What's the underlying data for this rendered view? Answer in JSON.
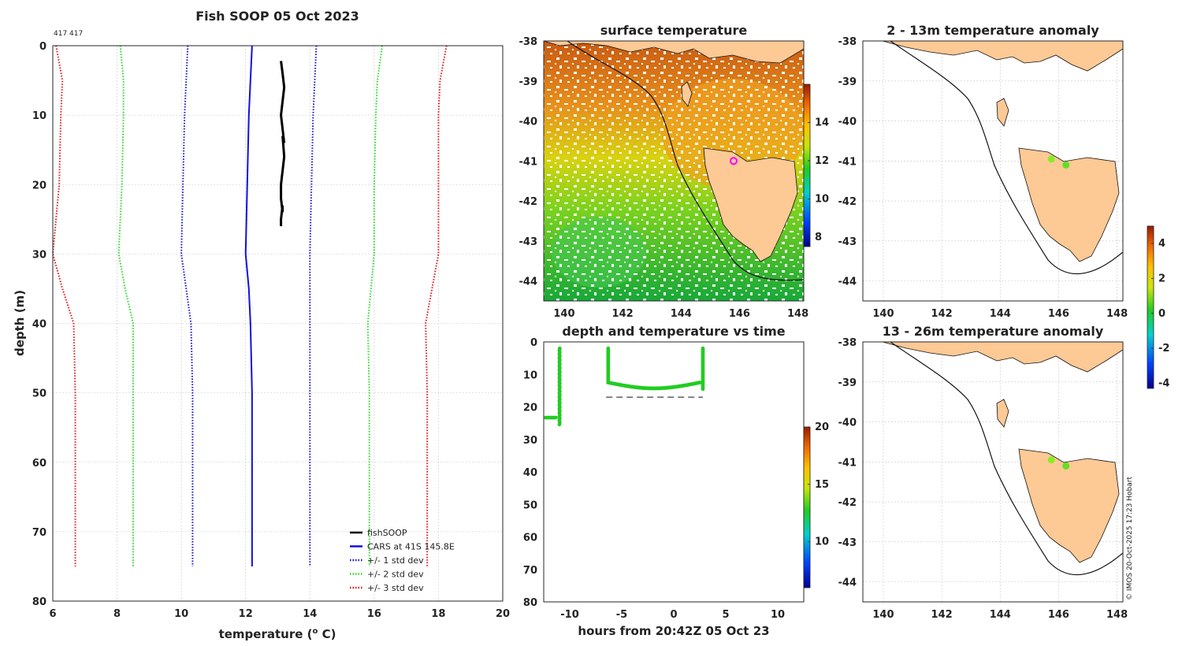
{
  "chart_data": [
    {
      "id": "profile",
      "type": "line",
      "title": "Fish SOOP 05 Oct 2023",
      "corner_label": "417 417",
      "xlabel": "temperature (",
      "xlabel_sup": "o",
      "xlabel_tail": " C)",
      "ylabel": "depth (m)",
      "xlim": [
        6,
        20
      ],
      "ylim": [
        80,
        0
      ],
      "xticks": [
        6,
        8,
        10,
        12,
        14,
        16,
        18,
        20
      ],
      "yticks": [
        0,
        10,
        20,
        30,
        40,
        50,
        60,
        70,
        80
      ],
      "grid": true,
      "legend_position": "bottom-right",
      "series": [
        {
          "name": "fishSOOP",
          "color": "#000000",
          "style": "solid",
          "width": 3,
          "x": [
            13.1,
            13.15,
            13.2,
            13.15,
            13.1,
            13.15,
            13.2,
            13.15,
            13.2,
            13.15,
            13.1,
            13.1,
            13.15,
            13.15,
            13.1,
            13.1
          ],
          "y": [
            2.2,
            4,
            6,
            8,
            10,
            12,
            14,
            13,
            16,
            18,
            20,
            22,
            24,
            23,
            25,
            26
          ]
        },
        {
          "name": "CARS at 41S 145.8E",
          "color": "#1010e0",
          "style": "solid",
          "width": 2,
          "x": [
            12.2,
            12.15,
            12.1,
            12.05,
            12.0,
            12.1,
            12.15,
            12.2,
            12.2,
            12.2
          ],
          "y": [
            0,
            5,
            10,
            20,
            30,
            35,
            40,
            50,
            60,
            75
          ]
        },
        {
          "name": "+/- 1 std dev",
          "color": "#1010e0",
          "style": "dotted",
          "width": 2,
          "x": [
            10.2,
            10.15,
            10.1,
            10.05,
            10.0,
            10.15,
            10.3,
            10.35,
            10.35,
            10.35
          ],
          "y": [
            0,
            5,
            10,
            20,
            30,
            35,
            40,
            50,
            60,
            75
          ]
        },
        {
          "name": "",
          "color": "#1010e0",
          "style": "dotted",
          "width": 2,
          "x": [
            14.2,
            14.15,
            14.1,
            14.05,
            14.0,
            14.0,
            14.0,
            14.0,
            14.0,
            14.0
          ],
          "y": [
            0,
            5,
            10,
            20,
            30,
            35,
            40,
            50,
            60,
            75
          ]
        },
        {
          "name": "+/- 2 std dev",
          "color": "#22dd22",
          "style": "dotted",
          "width": 2,
          "x": [
            8.1,
            8.2,
            8.2,
            8.15,
            8.05,
            8.25,
            8.5,
            8.5,
            8.5,
            8.5
          ],
          "y": [
            0,
            5,
            10,
            20,
            30,
            35,
            40,
            50,
            60,
            75
          ]
        },
        {
          "name": "",
          "color": "#22dd22",
          "style": "dotted",
          "width": 2,
          "x": [
            16.25,
            16.1,
            16.05,
            16.0,
            16.0,
            15.9,
            15.8,
            15.85,
            15.85,
            15.85
          ],
          "y": [
            0,
            5,
            10,
            20,
            30,
            35,
            40,
            50,
            60,
            75
          ]
        },
        {
          "name": "+/- 3 std dev",
          "color": "#ee1111",
          "style": "dotted",
          "width": 2,
          "x": [
            6.1,
            6.3,
            6.25,
            6.2,
            6.0,
            6.3,
            6.65,
            6.7,
            6.7,
            6.7
          ],
          "y": [
            0,
            5,
            10,
            20,
            30,
            35,
            40,
            50,
            60,
            75
          ]
        },
        {
          "name": "",
          "color": "#ee1111",
          "style": "dotted",
          "width": 2,
          "x": [
            18.25,
            18.05,
            18.0,
            18.0,
            18.0,
            17.8,
            17.6,
            17.65,
            17.65,
            17.65
          ],
          "y": [
            0,
            5,
            10,
            20,
            30,
            35,
            40,
            50,
            60,
            75
          ]
        }
      ]
    },
    {
      "id": "surface",
      "type": "heatmap",
      "title": "surface temperature",
      "xlim": [
        139.3,
        148.2
      ],
      "ylim": [
        -44.5,
        -38
      ],
      "xticks": [
        140,
        142,
        144,
        146,
        148
      ],
      "yticks": [
        -38,
        -39,
        -40,
        -41,
        -42,
        -43,
        -44
      ],
      "colorbar": {
        "min": 7.5,
        "max": 16,
        "ticks": [
          8,
          10,
          12,
          14
        ]
      },
      "marker": {
        "lon": 145.8,
        "lat": -41.0,
        "color": "#ff00ff"
      }
    },
    {
      "id": "timeseries",
      "type": "scatter",
      "title": "depth and temperature vs time",
      "xlabel": "hours from 20:42Z 05 Oct 23",
      "xlim": [
        -12.5,
        12.5
      ],
      "ylim": [
        80,
        0
      ],
      "xticks": [
        -10,
        -5,
        0,
        5,
        10
      ],
      "yticks": [
        0,
        10,
        20,
        30,
        40,
        50,
        60,
        70,
        80
      ],
      "colorbar": {
        "min": 6,
        "max": 20,
        "ticks": [
          10,
          15,
          20
        ]
      },
      "reference_line": {
        "y": 17,
        "x": [
          -6.5,
          2.8
        ]
      },
      "point_color": "#22cc22"
    },
    {
      "id": "anomaly1",
      "type": "scatter",
      "title": "2 - 13m temperature anomaly",
      "xlim": [
        139.3,
        148.2
      ],
      "ylim": [
        -44.5,
        -38
      ],
      "xticks": [
        140,
        142,
        144,
        146,
        148
      ],
      "yticks": [
        -38,
        -39,
        -40,
        -41,
        -42,
        -43,
        -44
      ],
      "points": [
        {
          "lon": 145.75,
          "lat": -40.95,
          "color": "#88ee22"
        },
        {
          "lon": 146.25,
          "lat": -41.1,
          "color": "#66dd22"
        }
      ]
    },
    {
      "id": "anomaly2",
      "type": "scatter",
      "title": "13 - 26m temperature anomaly",
      "xlim": [
        139.3,
        148.2
      ],
      "ylim": [
        -44.5,
        -38
      ],
      "xticks": [
        140,
        142,
        144,
        146,
        148
      ],
      "yticks": [
        -38,
        -39,
        -40,
        -41,
        -42,
        -43,
        -44
      ],
      "points": [
        {
          "lon": 145.75,
          "lat": -40.95,
          "color": "#88ee22"
        },
        {
          "lon": 146.25,
          "lat": -41.1,
          "color": "#66dd22"
        }
      ],
      "colorbar": {
        "min": -4.3,
        "max": 5,
        "ticks": [
          4,
          2,
          0,
          -2,
          -4
        ]
      }
    }
  ],
  "credit": "© IMOS 20-Oct-2025 17:23 Hobart"
}
